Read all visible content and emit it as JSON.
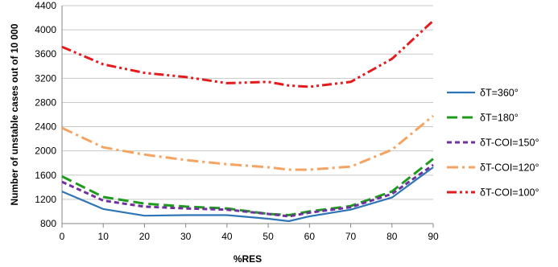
{
  "chart_data": {
    "type": "line",
    "title": "",
    "xlabel": "%RES",
    "ylabel": "Number of unstable cases out of 10 000",
    "xlim": [
      0,
      90
    ],
    "ylim": [
      800,
      4400
    ],
    "x_ticks": [
      0,
      10,
      20,
      30,
      40,
      50,
      60,
      70,
      80,
      90
    ],
    "y_ticks": [
      800,
      1200,
      1600,
      2000,
      2400,
      2800,
      3200,
      3600,
      4000,
      4400
    ],
    "grid": "horizontal",
    "legend_position": "right",
    "x": [
      0,
      10,
      20,
      30,
      40,
      50,
      55,
      60,
      70,
      80,
      90
    ],
    "series": [
      {
        "name": "δT=360°",
        "color": "#2e75b6",
        "dash": "solid",
        "values": [
          1330,
          1040,
          930,
          940,
          940,
          880,
          840,
          920,
          1030,
          1230,
          1730
        ]
      },
      {
        "name": "δT=180°",
        "color": "#1e9b1e",
        "dash": "longdash",
        "values": [
          1580,
          1240,
          1130,
          1080,
          1050,
          960,
          940,
          1000,
          1090,
          1330,
          1870
        ]
      },
      {
        "name": "δT-COI=150°",
        "color": "#7030a0",
        "dash": "dash",
        "values": [
          1490,
          1180,
          1080,
          1050,
          1030,
          960,
          920,
          980,
          1070,
          1290,
          1770
        ]
      },
      {
        "name": "δT-COI=120°",
        "color": "#f4a460",
        "dash": "dashdot",
        "values": [
          2380,
          2060,
          1940,
          1850,
          1780,
          1730,
          1690,
          1690,
          1740,
          2020,
          2580
        ]
      },
      {
        "name": "δT-COI=100°",
        "color": "#e41a1c",
        "dash": "dashdotdot",
        "values": [
          3720,
          3430,
          3290,
          3220,
          3120,
          3140,
          3080,
          3060,
          3140,
          3520,
          4150
        ]
      }
    ]
  }
}
